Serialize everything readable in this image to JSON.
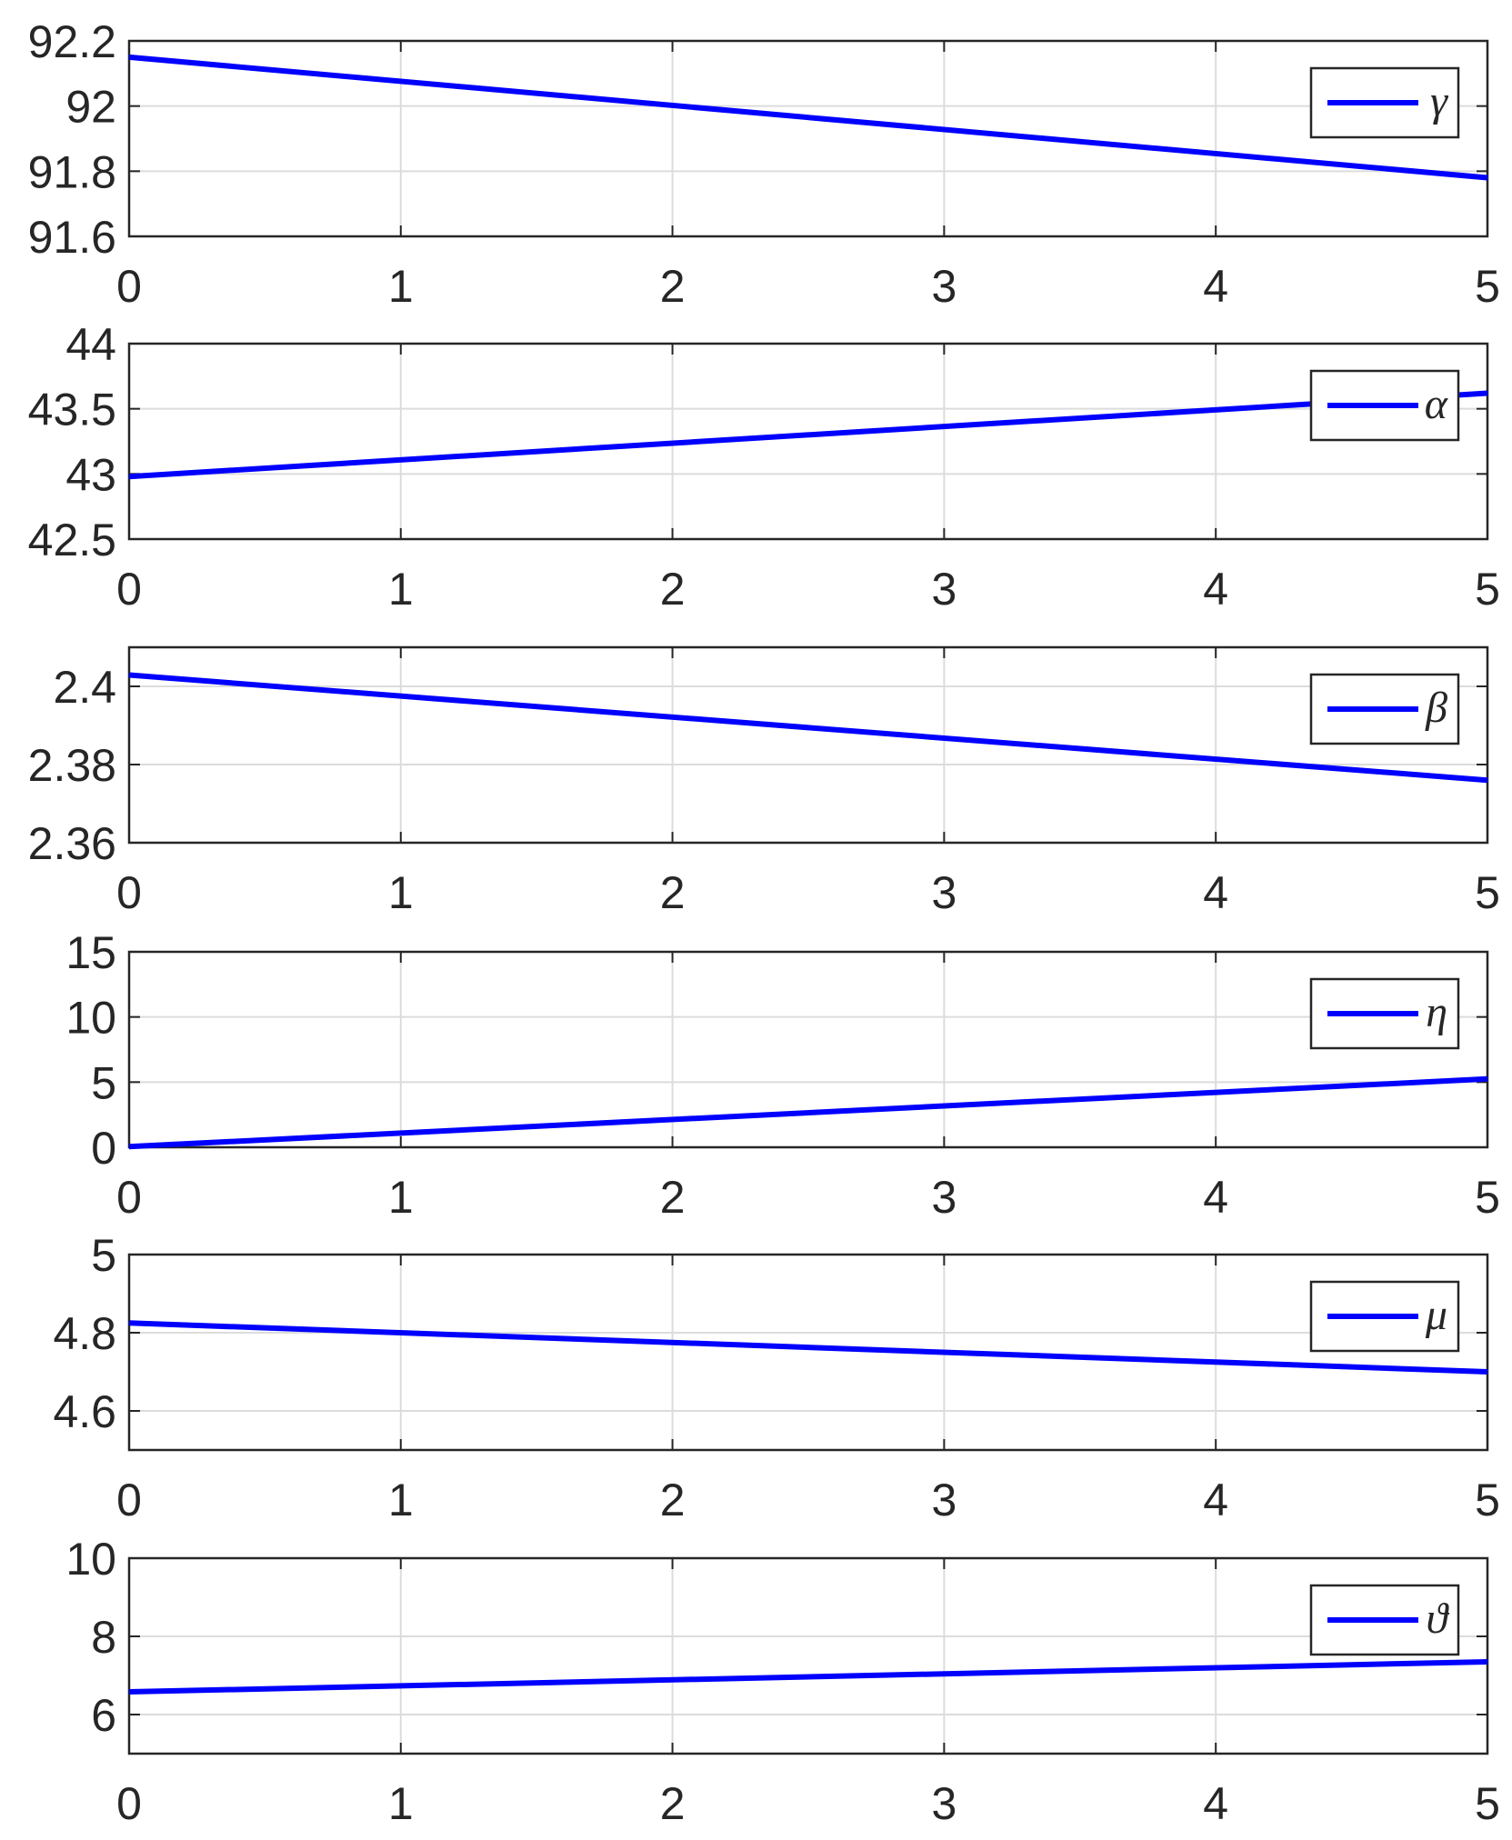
{
  "chart_data": [
    {
      "type": "line",
      "x": [
        0,
        5
      ],
      "series": [
        {
          "name": "γ",
          "values": [
            92.15,
            91.78
          ]
        }
      ],
      "xlim": [
        0,
        5
      ],
      "ylim": [
        91.6,
        92.2
      ],
      "xticks": [
        "0",
        "1",
        "2",
        "3",
        "4",
        "5"
      ],
      "yticks": [
        "91.6",
        "91.8",
        "92",
        "92.2"
      ],
      "ytick_values": [
        91.6,
        91.8,
        92,
        92.2
      ],
      "grid": true,
      "legend": "top-right",
      "color": "#0000ff"
    },
    {
      "type": "line",
      "x": [
        0,
        5
      ],
      "series": [
        {
          "name": "α",
          "values": [
            42.98,
            43.62
          ]
        }
      ],
      "xlim": [
        0,
        5
      ],
      "ylim": [
        42.5,
        44
      ],
      "xticks": [
        "0",
        "1",
        "2",
        "3",
        "4",
        "5"
      ],
      "yticks": [
        "42.5",
        "43",
        "43.5",
        "44"
      ],
      "ytick_values": [
        42.5,
        43,
        43.5,
        44
      ],
      "grid": true,
      "legend": "top-right",
      "color": "#0000ff"
    },
    {
      "type": "line",
      "x": [
        0,
        5
      ],
      "series": [
        {
          "name": "β",
          "values": [
            2.4029,
            2.376
          ]
        }
      ],
      "xlim": [
        0,
        5
      ],
      "ylim": [
        2.36,
        2.41
      ],
      "xticks": [
        "0",
        "1",
        "2",
        "3",
        "4",
        "5"
      ],
      "yticks": [
        "2.36",
        "2.38",
        "2.4"
      ],
      "ytick_values": [
        2.36,
        2.38,
        2.4
      ],
      "grid": true,
      "legend": "top-right",
      "color": "#0000ff"
    },
    {
      "type": "line",
      "x": [
        0,
        5
      ],
      "series": [
        {
          "name": "η",
          "values": [
            0.05,
            5.25
          ]
        }
      ],
      "xlim": [
        0,
        5
      ],
      "ylim": [
        0,
        15
      ],
      "xticks": [
        "0",
        "1",
        "2",
        "3",
        "4",
        "5"
      ],
      "yticks": [
        "0",
        "5",
        "10",
        "15"
      ],
      "ytick_values": [
        0,
        5,
        10,
        15
      ],
      "grid": true,
      "legend": "top-right",
      "color": "#0000ff"
    },
    {
      "type": "line",
      "x": [
        0,
        5
      ],
      "series": [
        {
          "name": "μ",
          "values": [
            4.825,
            4.7
          ]
        }
      ],
      "xlim": [
        0,
        5
      ],
      "ylim": [
        4.5,
        5
      ],
      "xticks": [
        "0",
        "1",
        "2",
        "3",
        "4",
        "5"
      ],
      "yticks": [
        "4.6",
        "4.8",
        "5"
      ],
      "ytick_values": [
        4.6,
        4.8,
        5
      ],
      "grid": true,
      "legend": "top-right",
      "color": "#0000ff"
    },
    {
      "type": "line",
      "x": [
        0,
        5
      ],
      "series": [
        {
          "name": "ϑ",
          "values": [
            6.58,
            7.35
          ]
        }
      ],
      "xlim": [
        0,
        5
      ],
      "ylim": [
        5,
        10
      ],
      "xticks": [
        "0",
        "1",
        "2",
        "3",
        "4",
        "5"
      ],
      "yticks": [
        "6",
        "8",
        "10"
      ],
      "ytick_values": [
        6,
        8,
        10
      ],
      "grid": true,
      "legend": "top-right",
      "color": "#0000ff"
    }
  ]
}
